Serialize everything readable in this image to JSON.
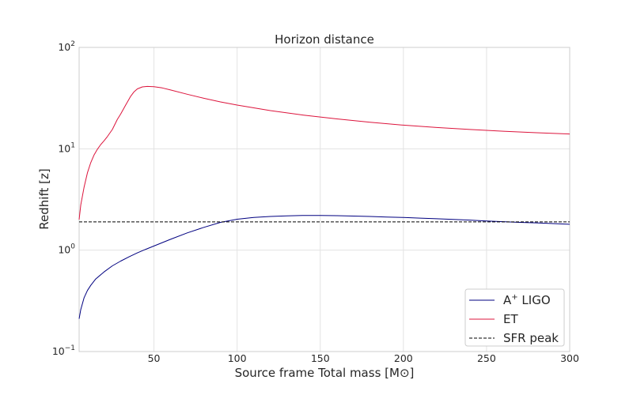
{
  "chart_data": {
    "type": "line",
    "title": "Horizon distance",
    "xlabel": "Source frame Total mass [M⊙]",
    "ylabel": "Redhift [z]",
    "xlim": [
      5,
      300
    ],
    "ylim": [
      0.1,
      100
    ],
    "yscale": "log",
    "grid": true,
    "legend_position": "bottom-right",
    "x_ticks": [
      50,
      100,
      150,
      200,
      250,
      300
    ],
    "y_ticks": [
      {
        "value": 0.1,
        "base": "10",
        "exp": "−1"
      },
      {
        "value": 1,
        "base": "10",
        "exp": "0"
      },
      {
        "value": 10,
        "base": "10",
        "exp": "1"
      },
      {
        "value": 100,
        "base": "10",
        "exp": "2"
      }
    ],
    "series": [
      {
        "name": "A⁺ LIGO",
        "legend_base": "A",
        "legend_sup": "+",
        "legend_rest": " LIGO",
        "color": "#000080",
        "style": "solid",
        "x": [
          5,
          6,
          8,
          10,
          12,
          15,
          20,
          25,
          30,
          35,
          40,
          45,
          50,
          60,
          70,
          80,
          90,
          100,
          110,
          120,
          130,
          140,
          150,
          160,
          170,
          180,
          190,
          200,
          210,
          220,
          230,
          240,
          250,
          260,
          270,
          280,
          290,
          300
        ],
        "y": [
          0.21,
          0.26,
          0.34,
          0.4,
          0.45,
          0.52,
          0.61,
          0.7,
          0.78,
          0.86,
          0.94,
          1.02,
          1.1,
          1.28,
          1.48,
          1.68,
          1.88,
          2.02,
          2.1,
          2.15,
          2.18,
          2.2,
          2.2,
          2.19,
          2.17,
          2.15,
          2.12,
          2.1,
          2.07,
          2.04,
          2.01,
          1.98,
          1.94,
          1.91,
          1.88,
          1.86,
          1.83,
          1.8
        ]
      },
      {
        "name": "ET",
        "color": "#dc143c",
        "style": "solid",
        "x": [
          5,
          6,
          8,
          10,
          12,
          14,
          16,
          18,
          20,
          22,
          25,
          28,
          30,
          33,
          36,
          38,
          40,
          43,
          46,
          50,
          55,
          60,
          70,
          80,
          90,
          100,
          120,
          140,
          160,
          180,
          200,
          220,
          240,
          260,
          280,
          300
        ],
        "y": [
          2.0,
          2.8,
          4.2,
          5.8,
          7.3,
          8.7,
          9.9,
          11.0,
          12.0,
          13.2,
          15.5,
          19.5,
          22.0,
          27.0,
          33.0,
          36.5,
          39.0,
          40.8,
          41.2,
          41.0,
          39.8,
          38.0,
          34.5,
          31.5,
          29.0,
          27.0,
          23.8,
          21.5,
          19.7,
          18.3,
          17.1,
          16.2,
          15.5,
          14.9,
          14.4,
          14.0
        ]
      },
      {
        "name": "SFR peak",
        "color": "#000000",
        "style": "dashed",
        "x": [
          5,
          300
        ],
        "y": [
          1.9,
          1.9
        ]
      }
    ]
  }
}
